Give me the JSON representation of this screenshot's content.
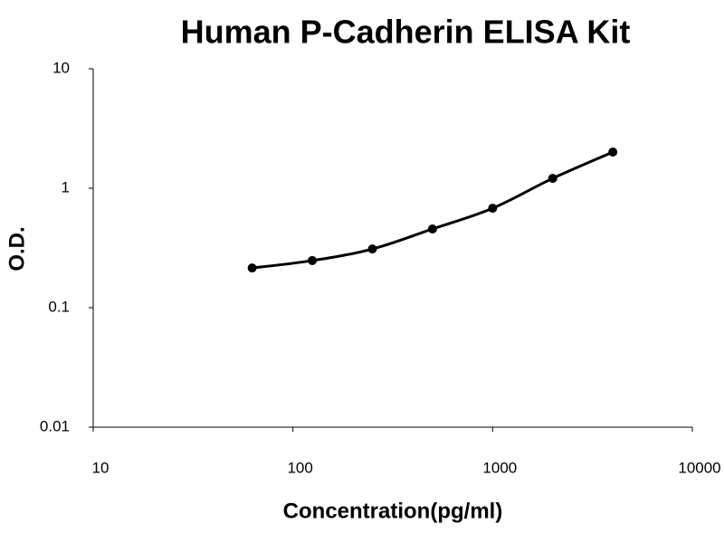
{
  "chart_data": {
    "type": "scatter",
    "title": "Human P-Cadherin ELISA Kit",
    "x_label": "Concentration(pg/ml)",
    "y_label": "O.D.",
    "x": [
      62.5,
      125,
      250,
      500,
      1000,
      2000,
      4000
    ],
    "values": [
      0.215,
      0.248,
      0.31,
      0.456,
      0.68,
      1.21,
      2.01
    ],
    "color": "#000000",
    "smooth_line": true,
    "xlog": true,
    "ylog": true,
    "xlim": [
      10,
      10000
    ],
    "xticks": [
      10,
      100,
      1000,
      10000
    ],
    "ylim": [
      0.01,
      10
    ],
    "yticks": [
      0.01,
      0.1,
      1,
      10
    ]
  }
}
